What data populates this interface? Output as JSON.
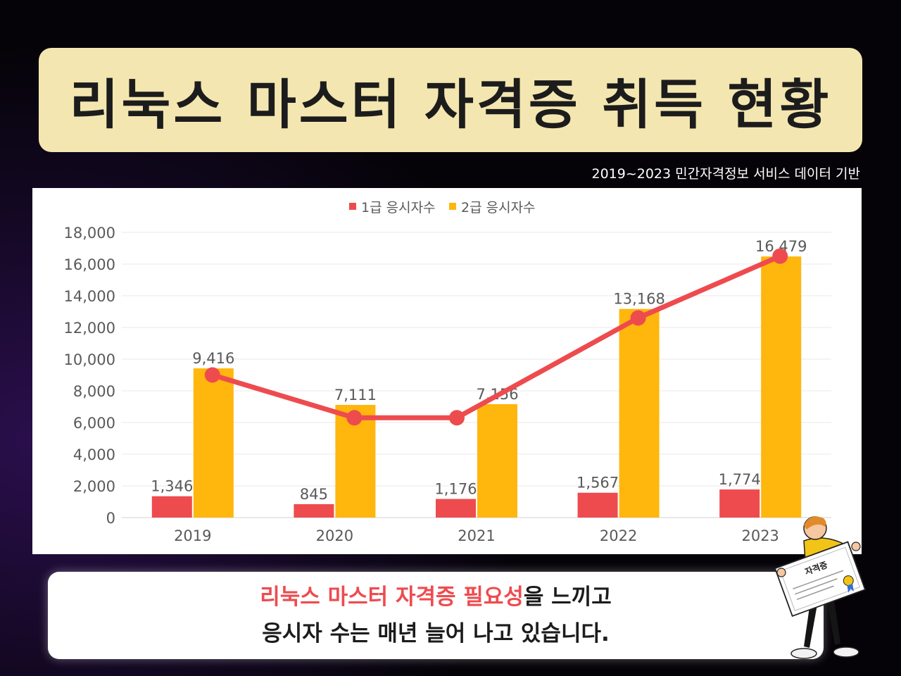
{
  "title": "리눅스 마스터 자격증 취득 현황",
  "source_note": "2019~2023 민간자격정보 서비스 데이터 기반",
  "caption": {
    "line1_highlight": "리눅스 마스터 자격증 필요성",
    "line1_rest": "을 느끼고",
    "line2": "응시자 수는 매년 늘어 나고 있습니다."
  },
  "mascot": {
    "certificate_label": "자격증"
  },
  "colors": {
    "series1": "#ee4b4f",
    "series2": "#ffb60d",
    "trend_line": "#ee4b4f",
    "banner": "#f4e6b0"
  },
  "chart_data": {
    "type": "bar",
    "categories": [
      "2019",
      "2020",
      "2021",
      "2022",
      "2023"
    ],
    "series": [
      {
        "name": "1급 응시자수",
        "values": [
          1346,
          845,
          1176,
          1567,
          1774
        ],
        "labels": [
          "1,346",
          "845",
          "1,176",
          "1,567",
          "1,774"
        ]
      },
      {
        "name": "2급 응시자수",
        "values": [
          9416,
          7111,
          7156,
          13168,
          16479
        ],
        "labels": [
          "9,416",
          "7,111",
          "7,156",
          "13,168",
          "16,479"
        ]
      }
    ],
    "trend_line": {
      "values": [
        9000,
        6300,
        6300,
        12600,
        16500
      ]
    },
    "ylim": [
      0,
      18000
    ],
    "yticks": [
      0,
      2000,
      4000,
      6000,
      8000,
      10000,
      12000,
      14000,
      16000,
      18000
    ],
    "ytick_labels": [
      "0",
      "2,000",
      "4,000",
      "6,000",
      "8,000",
      "10,000",
      "12,000",
      "14,000",
      "16,000",
      "18,000"
    ],
    "legend_position": "top-center",
    "grid": true
  }
}
